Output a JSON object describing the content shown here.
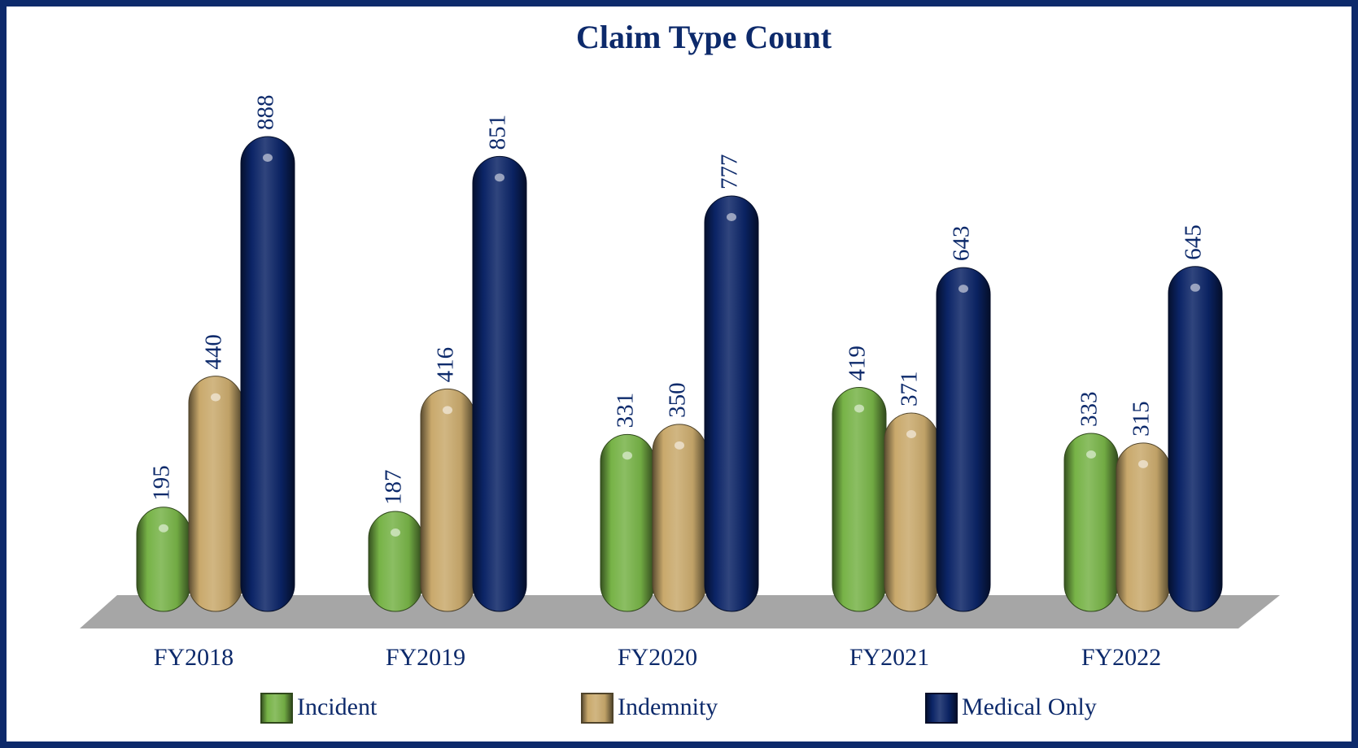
{
  "chart_data": {
    "type": "bar",
    "title": "Claim Type Count",
    "categories": [
      "FY2018",
      "FY2019",
      "FY2020",
      "FY2021",
      "FY2022"
    ],
    "series": [
      {
        "name": "Incident",
        "color": "#77b347",
        "values": [
          195,
          187,
          331,
          419,
          333
        ]
      },
      {
        "name": "Indemnity",
        "color": "#c9a96c",
        "values": [
          440,
          416,
          350,
          371,
          315
        ]
      },
      {
        "name": "Medical Only",
        "color": "#0b2466",
        "values": [
          888,
          851,
          777,
          643,
          645
        ]
      }
    ]
  }
}
